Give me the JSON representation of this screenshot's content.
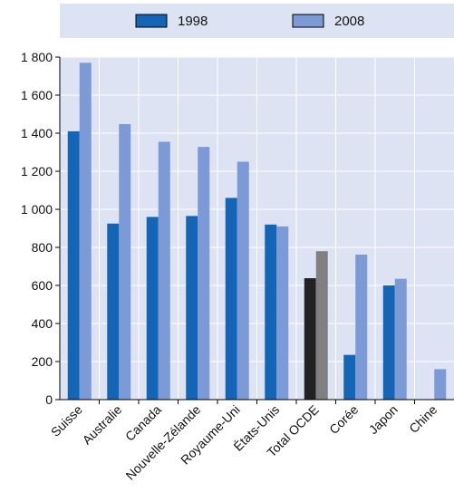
{
  "chart_data": {
    "type": "bar",
    "categories": [
      "Suisse",
      "Australie",
      "Canada",
      "Nouvelle-Zélande",
      "Royaume-Uni",
      "États-Unis",
      "Total OCDE",
      "Corée",
      "Japon",
      "Chine"
    ],
    "series": [
      {
        "name": "1998",
        "values": [
          1410,
          925,
          960,
          965,
          1060,
          920,
          638,
          235,
          600,
          null
        ]
      },
      {
        "name": "2008",
        "values": [
          1770,
          1448,
          1355,
          1328,
          1250,
          910,
          780,
          762,
          635,
          160
        ]
      }
    ],
    "highlight_category": "Total OCDE",
    "y_ticks": [
      "0",
      "200",
      "400",
      "600",
      "800",
      "1 000",
      "1 200",
      "1 400",
      "1 600",
      "1 800"
    ],
    "ylim": [
      0,
      1800
    ],
    "title": "",
    "xlabel": "",
    "ylabel": "",
    "grid": true,
    "legend_position": "top",
    "colors": {
      "series_1998": "#1565b7",
      "series_2008": "#7b9ad6",
      "highlight_1998": "#222222",
      "highlight_2008": "#808080",
      "plot_background": "#dde3f3",
      "legend_background": "#dde3f3",
      "grid": "#ffffff",
      "axis": "#000000"
    }
  }
}
